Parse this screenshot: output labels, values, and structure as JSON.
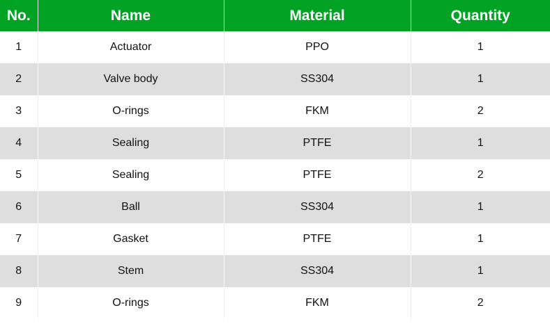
{
  "colors": {
    "header": "#02a324",
    "stripe": "#dedede"
  },
  "headers": [
    "No.",
    "Name",
    "Material",
    "Quantity"
  ],
  "rows": [
    [
      "1",
      "Actuator",
      "PPO",
      "1"
    ],
    [
      "2",
      "Valve body",
      "SS304",
      "1"
    ],
    [
      "3",
      "O-rings",
      "FKM",
      "2"
    ],
    [
      "4",
      "Sealing",
      "PTFE",
      "1"
    ],
    [
      "5",
      "Sealing",
      "PTFE",
      "2"
    ],
    [
      "6",
      "Ball",
      "SS304",
      "1"
    ],
    [
      "7",
      "Gasket",
      "PTFE",
      "1"
    ],
    [
      "8",
      "Stem",
      "SS304",
      "1"
    ],
    [
      "9",
      "O-rings",
      "FKM",
      "2"
    ]
  ]
}
